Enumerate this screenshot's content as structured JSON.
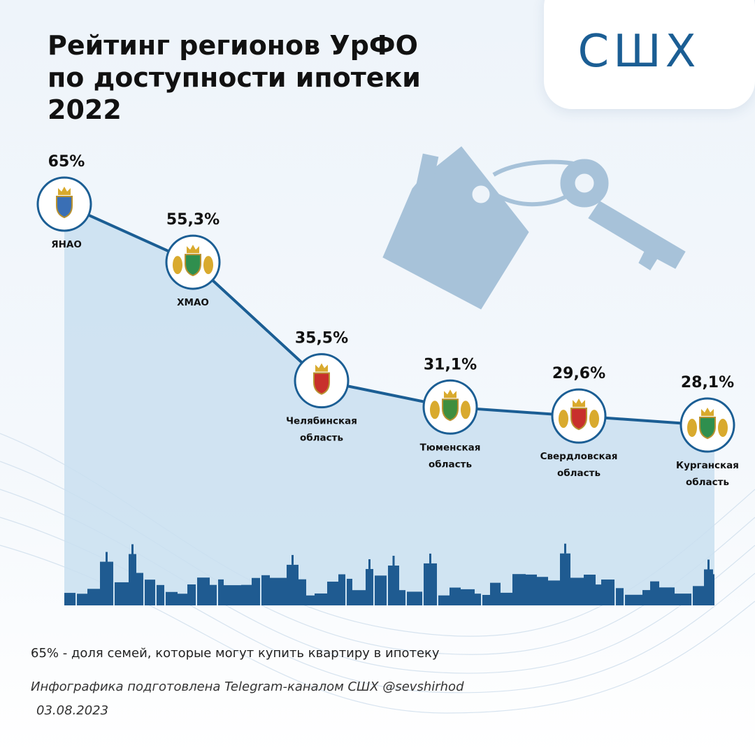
{
  "title_lines": [
    "Рейтинг регионов УрФО",
    "по доступности ипотеки",
    "2022"
  ],
  "brand": {
    "logo_text": "СШХ"
  },
  "colors": {
    "line": "#1b5e94",
    "area": "#c9dff0",
    "skyline": "#1f5b91",
    "house": "#a7c2d9"
  },
  "chart_data": {
    "type": "line",
    "title": "Рейтинг регионов УрФО по доступности ипотеки 2022",
    "categories": [
      [
        "ЯНАО"
      ],
      [
        "ХМАО"
      ],
      [
        "Челябинская",
        "область"
      ],
      [
        "Тюменская",
        "область"
      ],
      [
        "Свердловская",
        "область"
      ],
      [
        "Курганская",
        "область"
      ]
    ],
    "values": [
      65,
      55.3,
      35.5,
      31.1,
      29.6,
      28.1
    ],
    "value_labels": [
      "65%",
      "55,3%",
      "35,5%",
      "31,1%",
      "29,6%",
      "28,1%"
    ],
    "unit": "%",
    "grid": false,
    "legend": "none",
    "markers": "coat-of-arms-icon"
  },
  "footnote": "65% - доля семей, которые могут купить квартиру в ипотеку",
  "credit": "Инфографика подготовлена Telegram-каналом СШХ @sevshirhod",
  "date": "03.08.2023"
}
